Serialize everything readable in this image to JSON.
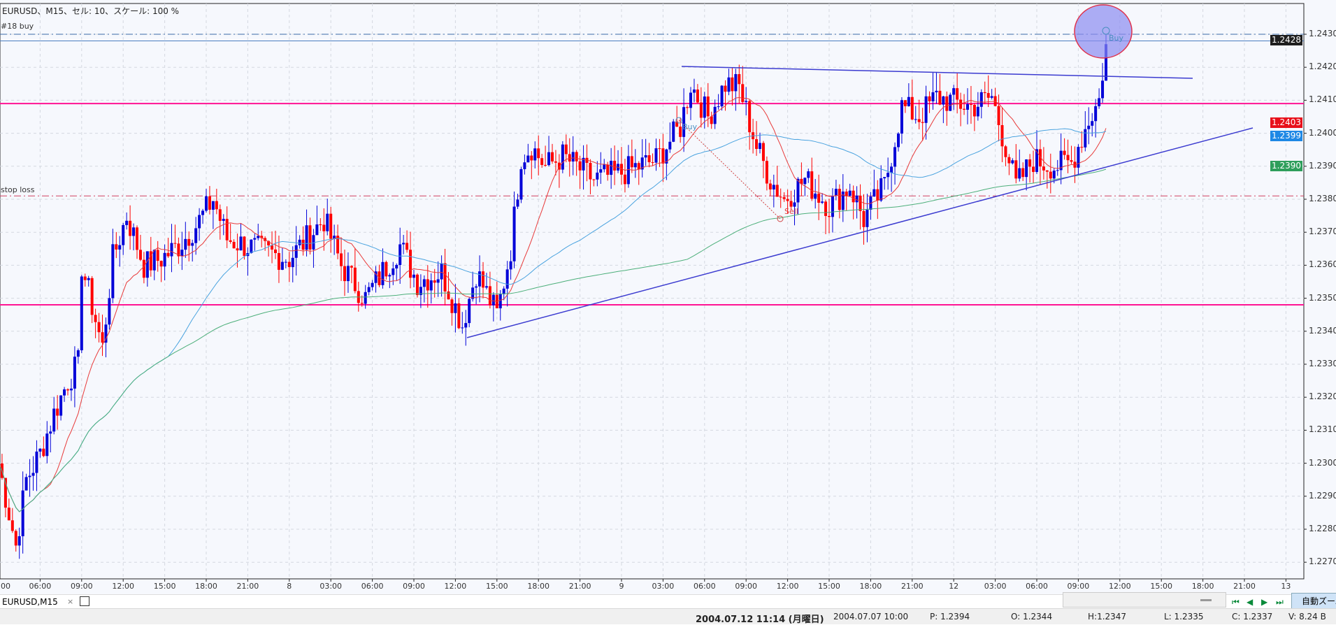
{
  "chart": {
    "title": "EURUSD、M15、セル: 10、スケール: 100 %",
    "order_label": "#18 buy",
    "stop_loss_label": "stop loss",
    "buy_label": "Buy",
    "sell_label": "Sell",
    "price_ticks": [
      "1.2430",
      "1.2420",
      "1.2410",
      "1.2400",
      "1.2390",
      "1.2380",
      "1.2370",
      "1.2360",
      "1.2350",
      "1.2340",
      "1.2330",
      "1.2320",
      "1.2310",
      "1.2300",
      "1.2290",
      "1.2280",
      "1.2270"
    ],
    "price_tags": [
      {
        "value": "1.2428",
        "color": "#1e1e1e"
      },
      {
        "value": "1.2403",
        "color": "#e8101a"
      },
      {
        "value": "1.2399",
        "color": "#1e88e5"
      },
      {
        "value": "1.2390",
        "color": "#2e9e5b"
      }
    ],
    "time_labels": [
      "00",
      "06:00",
      "09:00",
      "12:00",
      "15:00",
      "18:00",
      "21:00",
      "8",
      "03:00",
      "06:00",
      "09:00",
      "12:00",
      "15:00",
      "18:00",
      "21:00",
      "9",
      "03:00",
      "06:00",
      "09:00",
      "12:00",
      "15:00",
      "18:00",
      "21:00",
      "12",
      "03:00",
      "06:00",
      "09:00",
      "12:00",
      "15:00",
      "18:00",
      "21:00",
      "13"
    ],
    "levels": {
      "order": 1.243,
      "ask": 1.2428,
      "stop_loss": 1.2381,
      "resistance": 1.2409,
      "support": 1.2348
    },
    "colors": {
      "bull": "#0000d8",
      "bear": "#ff0000",
      "ma_fast": "#e83a3a",
      "ma_mid": "#4aa3df",
      "ma_slow": "#4caf7a",
      "hline": "#ff1493",
      "trend": "#3b3bd0",
      "circle_fill": "#8c8cf0",
      "circle_stroke": "#e0304a"
    },
    "price_path": [
      [
        0,
        1.23
      ],
      [
        3,
        1.2285
      ],
      [
        5,
        1.2275
      ],
      [
        8,
        1.2295
      ],
      [
        12,
        1.2303
      ],
      [
        16,
        1.2315
      ],
      [
        20,
        1.2325
      ],
      [
        23,
        1.233
      ],
      [
        24,
        1.236
      ],
      [
        26,
        1.2352
      ],
      [
        30,
        1.2335
      ],
      [
        33,
        1.2362
      ],
      [
        37,
        1.2375
      ],
      [
        42,
        1.236
      ],
      [
        47,
        1.2362
      ],
      [
        52,
        1.2366
      ],
      [
        57,
        1.2372
      ],
      [
        62,
        1.238
      ],
      [
        66,
        1.2368
      ],
      [
        74,
        1.2365
      ],
      [
        84,
        1.2362
      ],
      [
        94,
        1.2374
      ],
      [
        99,
        1.236
      ],
      [
        106,
        1.235
      ],
      [
        116,
        1.2366
      ],
      [
        121,
        1.2355
      ],
      [
        128,
        1.2358
      ],
      [
        134,
        1.2342
      ],
      [
        138,
        1.2358
      ],
      [
        144,
        1.2345
      ],
      [
        148,
        1.2365
      ],
      [
        151,
        1.2393
      ],
      [
        154,
        1.2396
      ],
      [
        158,
        1.239
      ],
      [
        163,
        1.2393
      ],
      [
        172,
        1.2386
      ],
      [
        180,
        1.2388
      ],
      [
        190,
        1.2392
      ],
      [
        197,
        1.2402
      ],
      [
        200,
        1.2415
      ],
      [
        205,
        1.2405
      ],
      [
        210,
        1.2415
      ],
      [
        214,
        1.2414
      ],
      [
        219,
        1.2396
      ],
      [
        223,
        1.2386
      ],
      [
        227,
        1.238
      ],
      [
        233,
        1.2386
      ],
      [
        240,
        1.2378
      ],
      [
        246,
        1.2384
      ],
      [
        250,
        1.2374
      ],
      [
        256,
        1.2384
      ],
      [
        261,
        1.2408
      ],
      [
        266,
        1.2405
      ],
      [
        271,
        1.2411
      ],
      [
        281,
        1.2408
      ],
      [
        287,
        1.2411
      ],
      [
        291,
        1.2396
      ],
      [
        294,
        1.2384
      ],
      [
        299,
        1.2392
      ],
      [
        305,
        1.239
      ],
      [
        310,
        1.2391
      ],
      [
        315,
        1.2404
      ],
      [
        318,
        1.241
      ],
      [
        320,
        1.2427
      ]
    ]
  },
  "tabs": [
    {
      "label": "EURUSD,M15",
      "close": "×"
    }
  ],
  "nav": {
    "auto_zoom": "自動ズーム"
  },
  "status": {
    "datetime": "2004.07.12 11:14 (月曜日)",
    "bar_time": "2004.07.07 10:00",
    "p": "P: 1.2394",
    "o": "O: 1.2344",
    "h": "H:1.2347",
    "l": "L: 1.2335",
    "c": "C: 1.2337",
    "v": "V: 8.24 B"
  }
}
